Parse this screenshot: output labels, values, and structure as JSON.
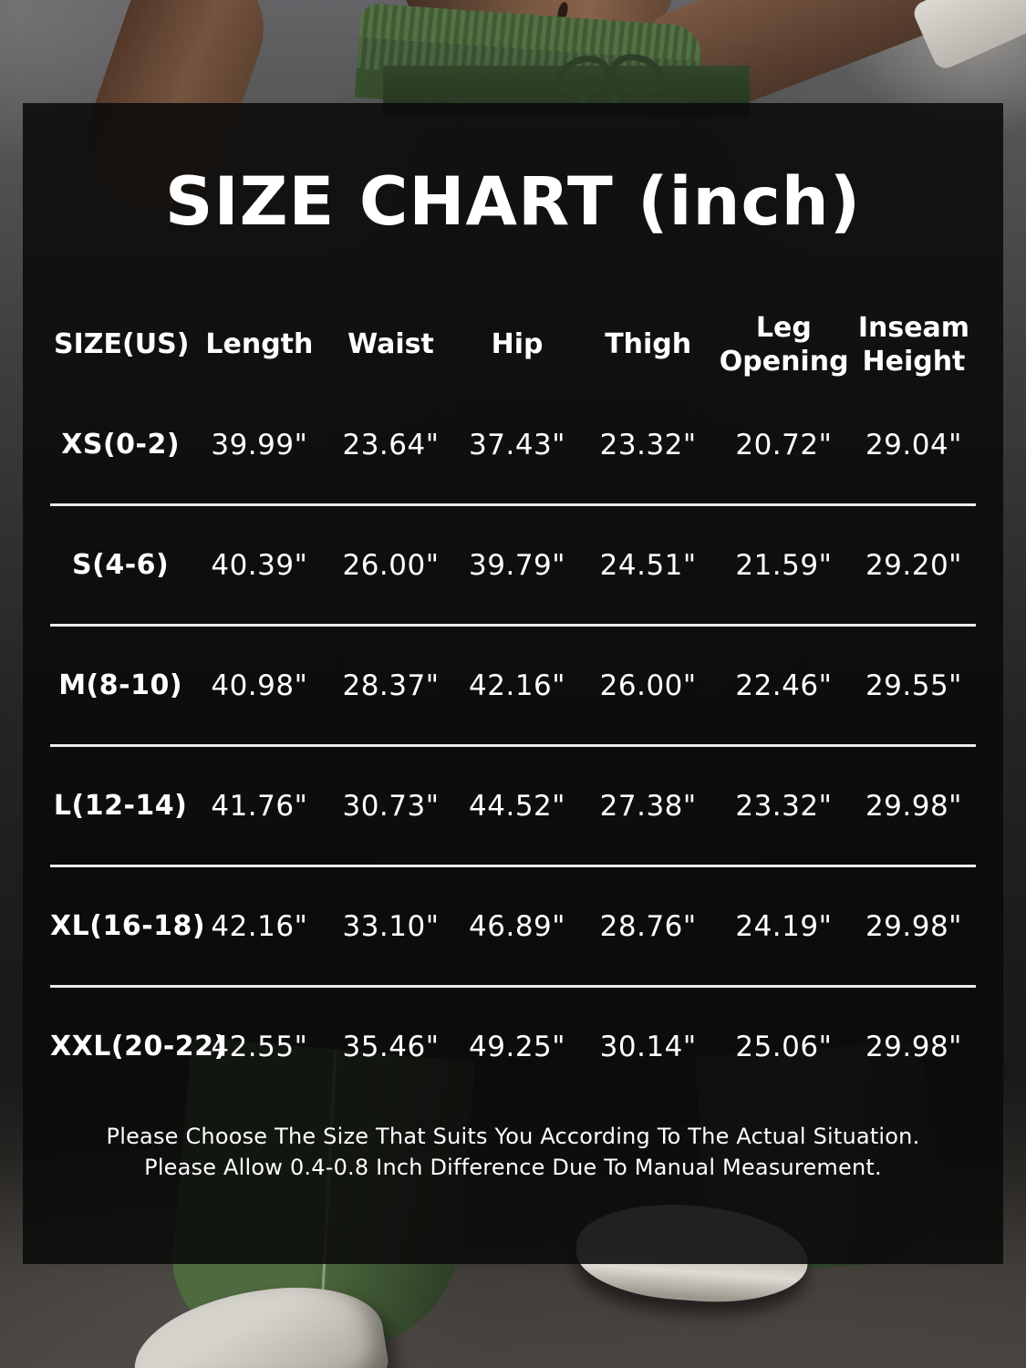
{
  "title": "SIZE CHART (inch)",
  "table": {
    "columns": [
      "SIZE(US)",
      "Length",
      "Waist",
      "Hip",
      "Thigh",
      "Leg Opening",
      "Inseam Height"
    ],
    "rows": [
      {
        "size": "XS(0-2)",
        "values": [
          "39.99\"",
          "23.64\"",
          "37.43\"",
          "23.32\"",
          "20.72\"",
          "29.04\""
        ]
      },
      {
        "size": "S(4-6)",
        "values": [
          "40.39\"",
          "26.00\"",
          "39.79\"",
          "24.51\"",
          "21.59\"",
          "29.20\""
        ]
      },
      {
        "size": "M(8-10)",
        "values": [
          "40.98\"",
          "28.37\"",
          "42.16\"",
          "26.00\"",
          "22.46\"",
          "29.55\""
        ]
      },
      {
        "size": "L(12-14)",
        "values": [
          "41.76\"",
          "30.73\"",
          "44.52\"",
          "27.38\"",
          "23.32\"",
          "29.98\""
        ]
      },
      {
        "size": "XL(16-18)",
        "values": [
          "42.16\"",
          "33.10\"",
          "46.89\"",
          "28.76\"",
          "24.19\"",
          "29.98\""
        ]
      },
      {
        "size": "XXL(20-22)",
        "values": [
          "42.55\"",
          "35.46\"",
          "49.25\"",
          "30.14\"",
          "25.06\"",
          "29.98\""
        ]
      }
    ]
  },
  "footer": {
    "line1": "Please Choose The Size That Suits You According To The Actual Situation.",
    "line2": "Please Allow 0.4-0.8 Inch Difference Due To Manual Measurement."
  },
  "colors": {
    "panel_overlay": "#0a0a0a",
    "text": "#ffffff",
    "divider": "#ededed",
    "pants_green": "#4e6b42"
  }
}
